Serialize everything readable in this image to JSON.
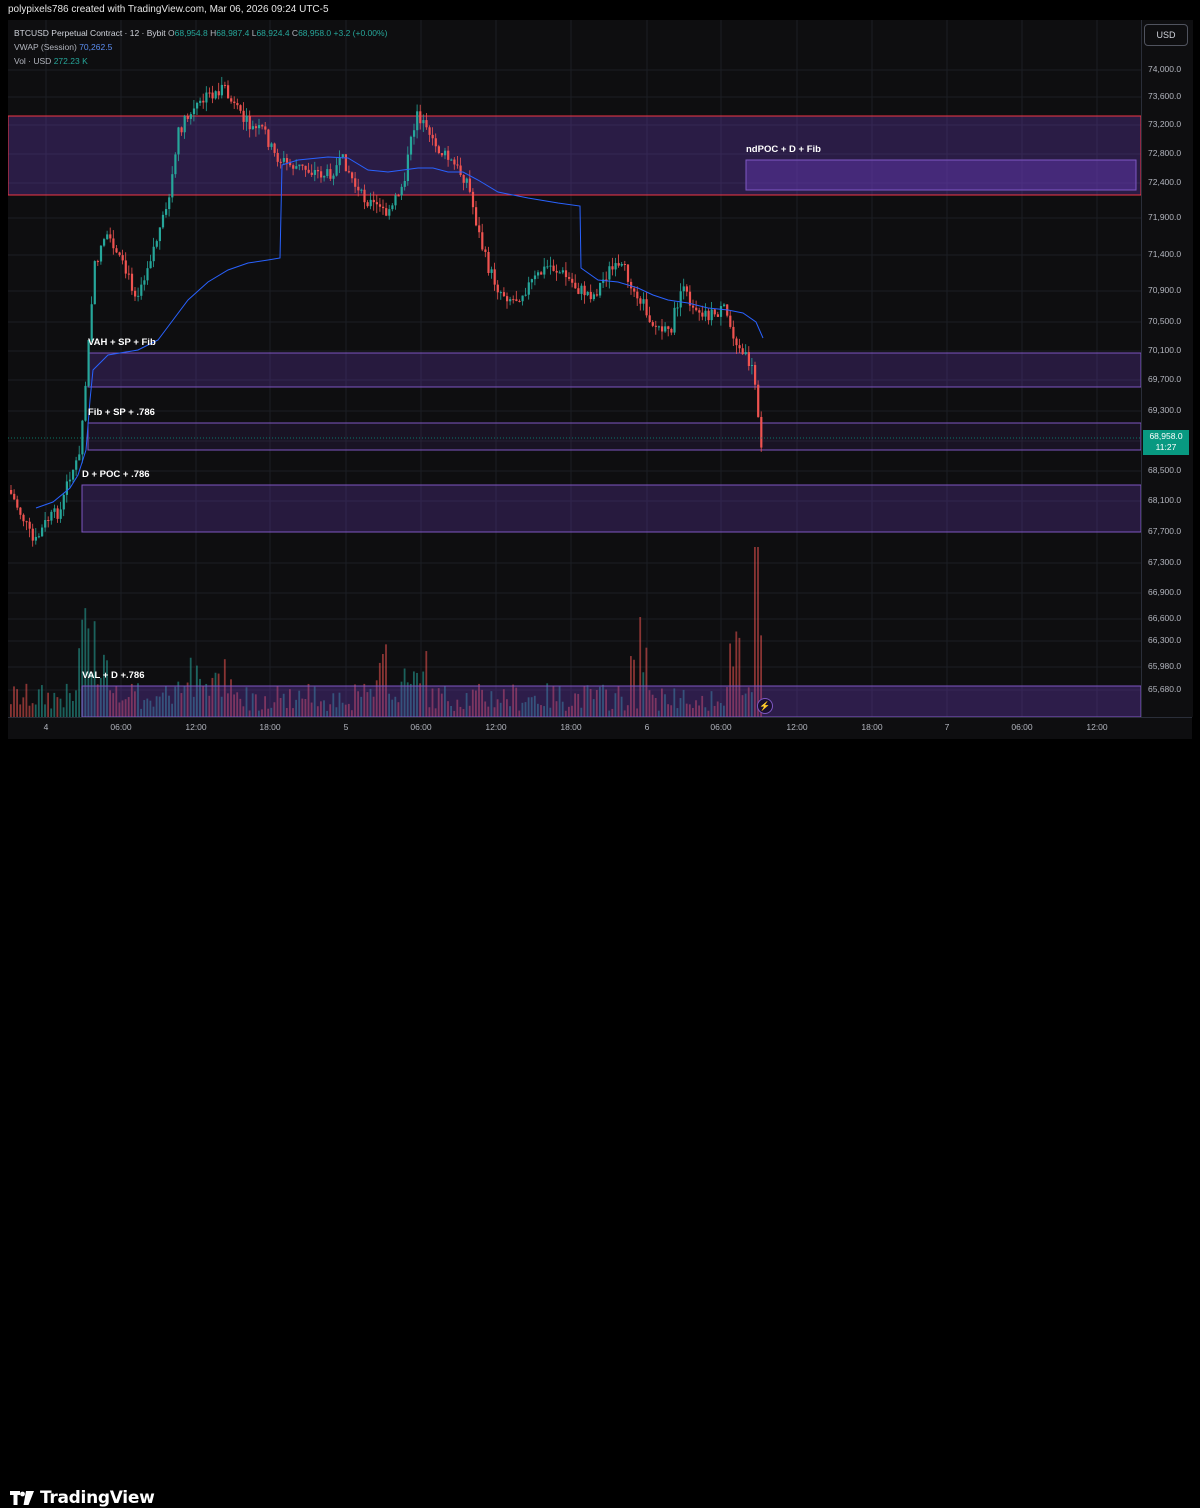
{
  "header": {
    "text": "polypixels786 created with TradingView.com, Mar 06, 2026 09:24 UTC-5"
  },
  "legend": {
    "symbol": "BTCUSD Perpetual Contract · 12 · Bybit",
    "ohlc": [
      {
        "label": "O",
        "value": "68,954.8"
      },
      {
        "label": "H",
        "value": "68,987.4"
      },
      {
        "label": "L",
        "value": "68,924.4"
      },
      {
        "label": "C",
        "value": "68,958.0"
      }
    ],
    "change": "+3.2 (+0.00%)",
    "vwap_label": "VWAP (Session)",
    "vwap_value": "70,262.5",
    "vol_label": "Vol · USD",
    "vol_value": "272.23 K"
  },
  "currency_button": "USD",
  "price_axis": [
    "74,000.0",
    "73,600.0",
    "73,200.0",
    "72,800.0",
    "72,400.0",
    "71,900.0",
    "71,400.0",
    "70,900.0",
    "70,500.0",
    "70,100.0",
    "69,700.0",
    "69,300.0",
    "68,900.0",
    "68,500.0",
    "68,100.0",
    "67,700.0",
    "67,300.0",
    "66,900.0",
    "66,600.0",
    "66,300.0",
    "65,980.0",
    "65,680.0"
  ],
  "time_axis": [
    "4",
    "06:00",
    "12:00",
    "18:00",
    "5",
    "06:00",
    "12:00",
    "18:00",
    "6",
    "06:00",
    "12:00",
    "18:00",
    "7",
    "06:00",
    "12:00"
  ],
  "price_tag": {
    "price": "68,958.0",
    "countdown": "11:27"
  },
  "zones": [
    {
      "label": "ndPOC + D + Fib"
    },
    {
      "label": "VAH + SP + Fib"
    },
    {
      "label": "Fib + SP + .786"
    },
    {
      "label": "D + POC + .786"
    },
    {
      "label": "VAL + D +.786"
    }
  ],
  "brand": "TradingView",
  "colors": {
    "up": "#26a69a",
    "down": "#ef5350",
    "vwap": "#2962ff",
    "zone": "#7e57c2",
    "resistance": "#f23645"
  },
  "chart_data": {
    "type": "candlestick",
    "series": [
      {
        "name": "VWAP (Session)"
      },
      {
        "name": "Vol · USD"
      }
    ],
    "key_price_path": [
      {
        "t": "Mar 4 00:00",
        "price": 68300
      },
      {
        "t": "Mar 4 02:00",
        "price": 67450
      },
      {
        "t": "Mar 4 04:30",
        "price": 69300
      },
      {
        "t": "Mar 4 06:00",
        "price": 71800
      },
      {
        "t": "Mar 4 11:00",
        "price": 73300
      },
      {
        "t": "Mar 4 14:00",
        "price": 74050
      },
      {
        "t": "Mar 4 18:00",
        "price": 72900
      },
      {
        "t": "Mar 5 00:00",
        "price": 72000
      },
      {
        "t": "Mar 5 05:00",
        "price": 73500
      },
      {
        "t": "Mar 5 12:00",
        "price": 71000
      },
      {
        "t": "Mar 5 18:00",
        "price": 70900
      },
      {
        "t": "Mar 6 00:00",
        "price": 70500
      },
      {
        "t": "Mar 6 06:00",
        "price": 70200
      },
      {
        "t": "Mar 6 08:00",
        "price": 68600
      },
      {
        "t": "Mar 6 09:24",
        "price": 68958
      }
    ],
    "zones_price": [
      {
        "label": "resistance",
        "top": 73250,
        "bottom": 72250
      },
      {
        "label": "ndPOC + D + Fib",
        "top": 72750,
        "bottom": 72350
      },
      {
        "label": "VAH + SP + Fib",
        "top": 70100,
        "bottom": 69650
      },
      {
        "label": "Fib + SP + .786",
        "top": 69150,
        "bottom": 68800
      },
      {
        "label": "D + POC + .786",
        "top": 68300,
        "bottom": 67750
      },
      {
        "label": "VAL + D +.786",
        "top": 65800,
        "bottom": 65400
      }
    ],
    "current_price": 68958.0,
    "vwap_current": 70262.5
  }
}
